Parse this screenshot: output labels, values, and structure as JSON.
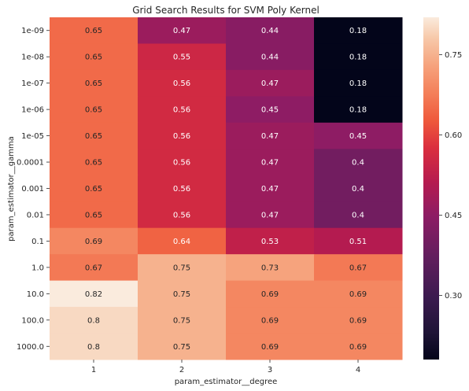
{
  "chart_data": {
    "type": "heatmap",
    "title": "Grid Search Results for SVM Poly Kernel",
    "xlabel": "param_estimator__degree",
    "ylabel": "param_estimator__gamma",
    "x_categories": [
      "1",
      "2",
      "3",
      "4"
    ],
    "y_categories": [
      "1e-09",
      "1e-08",
      "1e-07",
      "1e-06",
      "1e-05",
      "0.0001",
      "0.001",
      "0.01",
      "0.1",
      "1.0",
      "10.0",
      "100.0",
      "1000.0"
    ],
    "values": [
      [
        0.65,
        0.47,
        0.44,
        0.18
      ],
      [
        0.65,
        0.55,
        0.44,
        0.18
      ],
      [
        0.65,
        0.56,
        0.47,
        0.18
      ],
      [
        0.65,
        0.56,
        0.45,
        0.18
      ],
      [
        0.65,
        0.56,
        0.47,
        0.45
      ],
      [
        0.65,
        0.56,
        0.47,
        0.4
      ],
      [
        0.65,
        0.56,
        0.47,
        0.4
      ],
      [
        0.65,
        0.56,
        0.47,
        0.4
      ],
      [
        0.69,
        0.64,
        0.53,
        0.51
      ],
      [
        0.67,
        0.75,
        0.73,
        0.67
      ],
      [
        0.82,
        0.75,
        0.69,
        0.69
      ],
      [
        0.8,
        0.75,
        0.69,
        0.69
      ],
      [
        0.8,
        0.75,
        0.69,
        0.69
      ]
    ],
    "colormap": "rocket",
    "vmin": 0.18,
    "vmax": 0.82,
    "colorbar_ticks": [
      "0.30",
      "0.45",
      "0.60",
      "0.75"
    ],
    "colorbar_tick_values": [
      0.3,
      0.45,
      0.6,
      0.75
    ],
    "annotated": true,
    "grid": false
  }
}
